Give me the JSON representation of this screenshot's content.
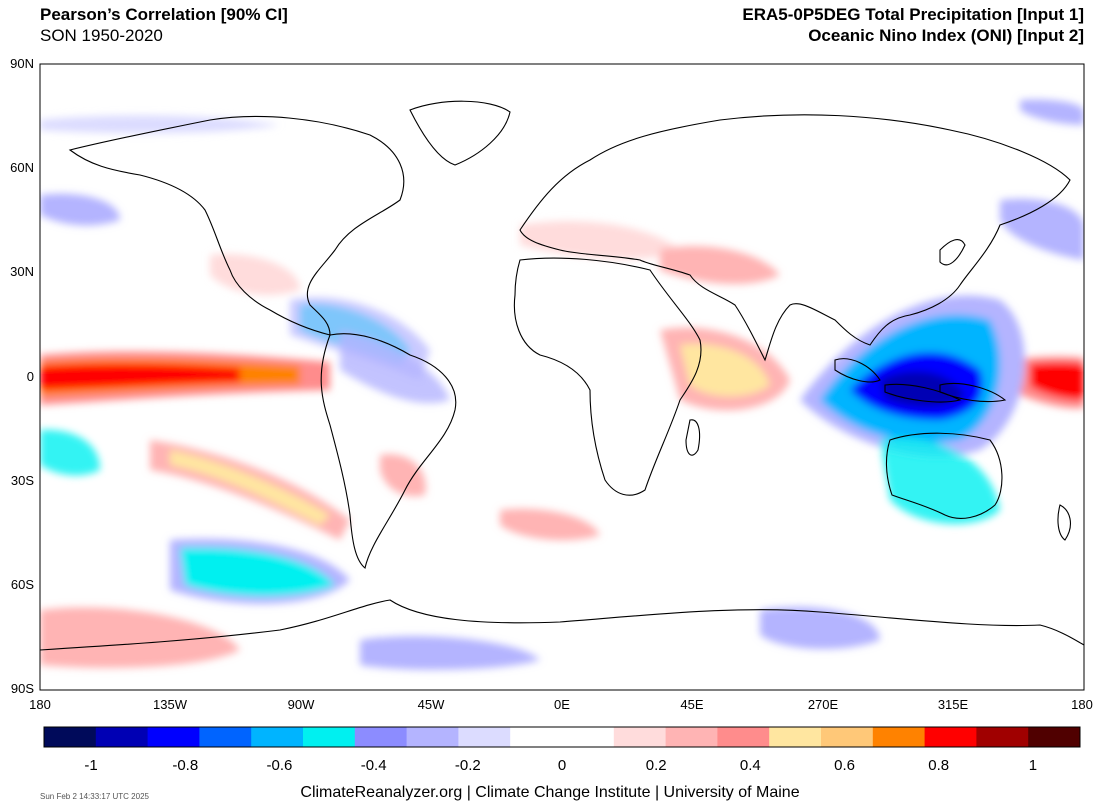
{
  "header": {
    "title_left": "Pearson’s Correlation [90% CI]",
    "subtitle_left": "SON 1950-2020",
    "title_right_1": "ERA5-0P5DEG Total Precipitation [Input 1]",
    "title_right_2": "Oceanic Nino Index (ONI) [Input 2]"
  },
  "map": {
    "lat_ticks": [
      "90N",
      "60N",
      "30N",
      "0",
      "30S",
      "60S",
      "90S"
    ],
    "lon_ticks": [
      "180",
      "135W",
      "90W",
      "45W",
      "0E",
      "45E",
      "270E",
      "315E",
      "180"
    ]
  },
  "colorbar": {
    "colors": [
      "#000a5a",
      "#0000b4",
      "#0000ff",
      "#0064ff",
      "#00b4ff",
      "#00f0f0",
      "#8c8cff",
      "#b4b4ff",
      "#dcdcff",
      "#ffffff",
      "#ffffff",
      "#ffdcdc",
      "#ffb4b4",
      "#ff8c8c",
      "#ffe6a0",
      "#ffc878",
      "#ff8200",
      "#ff0000",
      "#a00000",
      "#500000"
    ],
    "labels": [
      "-1",
      "-0.8",
      "-0.6",
      "-0.4",
      "-0.2",
      "0",
      "0.2",
      "0.4",
      "0.6",
      "0.8",
      "1"
    ]
  },
  "footer": {
    "credit": "ClimateReanalyzer.org | Climate Change Institute | University of Maine",
    "timestamp": "Sun Feb  2 14:33:17 UTC 2025"
  }
}
